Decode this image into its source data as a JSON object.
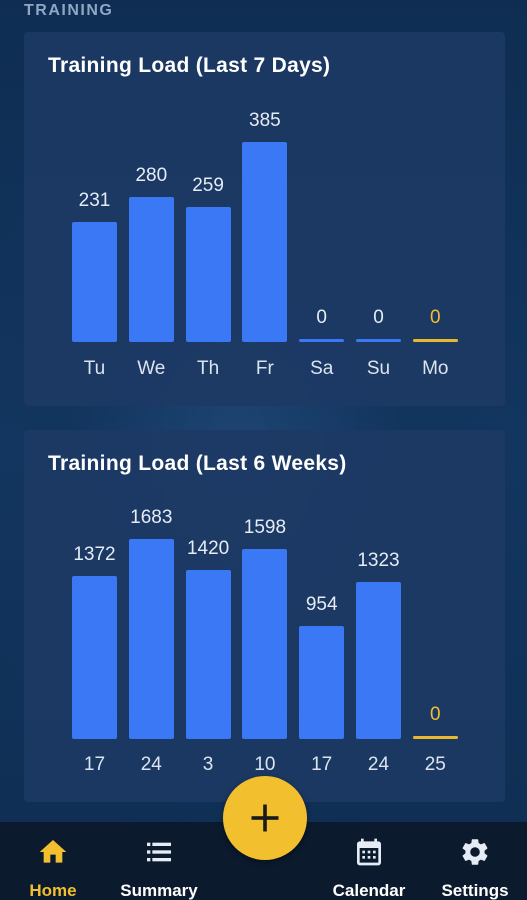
{
  "section_label": "TRAINING",
  "cards": [
    {
      "title": "Training Load (Last 7 Days)"
    },
    {
      "title": "Training Load (Last 6 Weeks)"
    }
  ],
  "chart_data": [
    {
      "type": "bar",
      "title": "Training Load (Last 7 Days)",
      "categories": [
        "Tu",
        "We",
        "Th",
        "Fr",
        "Sa",
        "Su",
        "Mo"
      ],
      "values": [
        231,
        280,
        259,
        385,
        0,
        0,
        0
      ],
      "value_labels": [
        "231",
        "280",
        "259",
        "385",
        "0",
        "0",
        "0"
      ],
      "highlight_index": 6,
      "highlight_color": "#f2bf2e",
      "bar_color": "#3b78f5",
      "ylim": [
        0,
        385
      ]
    },
    {
      "type": "bar",
      "title": "Training Load (Last 6 Weeks)",
      "categories": [
        "17",
        "24",
        "3",
        "10",
        "17",
        "24",
        "25"
      ],
      "values": [
        1372,
        1683,
        1420,
        1598,
        954,
        1323,
        0
      ],
      "value_labels": [
        "1372",
        "1683",
        "1420",
        "1598",
        "954",
        "1323",
        "0"
      ],
      "highlight_index": 6,
      "highlight_color": "#f2bf2e",
      "bar_color": "#3b78f5",
      "ylim": [
        0,
        1683
      ]
    }
  ],
  "navbar": {
    "items": [
      {
        "label": "Home",
        "icon": "home-icon",
        "active": true
      },
      {
        "label": "Summary",
        "icon": "list-icon",
        "active": false
      },
      {
        "label": "Calendar",
        "icon": "calendar-icon",
        "active": false
      },
      {
        "label": "Settings",
        "icon": "gear-icon",
        "active": false
      }
    ],
    "fab_icon": "plus-icon",
    "active_color": "#f2bf2e"
  }
}
